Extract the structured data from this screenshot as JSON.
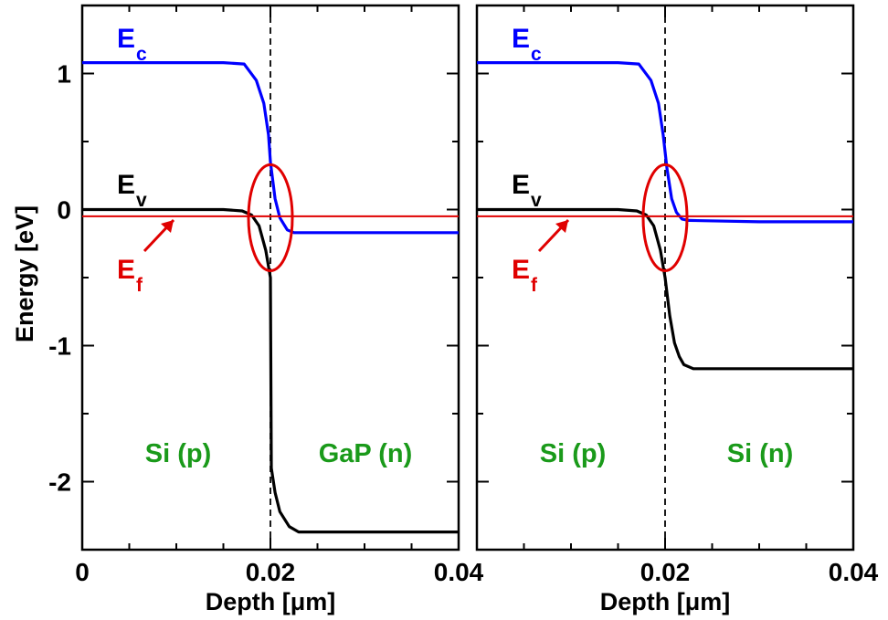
{
  "colors": {
    "ec": "#0000ff",
    "ev": "#000000",
    "ef": "#e00000",
    "region": "#1a9a1a",
    "ellipse": "#e00000",
    "frame": "#000000"
  },
  "ylabel": "Energy [eV]",
  "chart_data": [
    {
      "type": "line",
      "xlabel": "Depth [μm]",
      "ylabel": "Energy [eV]",
      "xlim": [
        0,
        0.04
      ],
      "ylim": [
        -2.5,
        1.5
      ],
      "xticks": [
        0,
        0.02,
        0.04
      ],
      "xtick_labels": [
        "0",
        "0.02",
        "0.04"
      ],
      "yticks": [
        1,
        0,
        -1,
        -2
      ],
      "ytick_labels": [
        "1",
        "0",
        "-1",
        "-2"
      ],
      "interface_x": 0.02,
      "series": [
        {
          "name": "Ec",
          "key": "ec",
          "x": [
            0,
            0.015,
            0.0172,
            0.0185,
            0.0193,
            0.0198,
            0.02,
            0.0205,
            0.021,
            0.0218,
            0.0225,
            0.03,
            0.04
          ],
          "y": [
            1.08,
            1.08,
            1.07,
            0.95,
            0.78,
            0.55,
            0.35,
            0.08,
            -0.06,
            -0.15,
            -0.17,
            -0.17,
            -0.17
          ]
        },
        {
          "name": "Ev",
          "key": "ev",
          "x": [
            0,
            0.015,
            0.017,
            0.018,
            0.0188,
            0.0195,
            0.02,
            0.0201,
            0.0205,
            0.021,
            0.022,
            0.023,
            0.03,
            0.04
          ],
          "y": [
            0,
            0,
            -0.01,
            -0.04,
            -0.12,
            -0.3,
            -0.5,
            -1.9,
            -2.08,
            -2.22,
            -2.33,
            -2.37,
            -2.37,
            -2.37
          ]
        },
        {
          "name": "Ef",
          "key": "ef",
          "x": [
            0,
            0.04
          ],
          "y": [
            -0.05,
            -0.05
          ]
        }
      ],
      "labels": {
        "ec": "E",
        "ec_sub": "c",
        "ev": "E",
        "ev_sub": "v",
        "ef": "E",
        "ef_sub": "f"
      },
      "regions": [
        "Si (p)",
        "GaP (n)"
      ]
    },
    {
      "type": "line",
      "xlabel": "Depth [μm]",
      "xlim": [
        0,
        0.04
      ],
      "ylim": [
        -2.5,
        1.5
      ],
      "xticks": [
        0,
        0.02,
        0.04
      ],
      "xtick_labels": [
        "",
        "0.02",
        "0.04"
      ],
      "yticks": [
        1,
        0,
        -1,
        -2
      ],
      "interface_x": 0.02,
      "series": [
        {
          "name": "Ec",
          "key": "ec",
          "x": [
            0,
            0.015,
            0.0172,
            0.0185,
            0.0193,
            0.0198,
            0.0202,
            0.0207,
            0.0212,
            0.0218,
            0.0225,
            0.03,
            0.04
          ],
          "y": [
            1.08,
            1.08,
            1.07,
            0.95,
            0.78,
            0.55,
            0.3,
            0.08,
            -0.02,
            -0.07,
            -0.08,
            -0.09,
            -0.09
          ]
        },
        {
          "name": "Ev",
          "key": "ev",
          "x": [
            0,
            0.015,
            0.017,
            0.018,
            0.0188,
            0.0195,
            0.02,
            0.0205,
            0.021,
            0.0215,
            0.022,
            0.023,
            0.03,
            0.04
          ],
          "y": [
            0,
            0,
            -0.01,
            -0.04,
            -0.12,
            -0.3,
            -0.5,
            -0.78,
            -0.98,
            -1.08,
            -1.14,
            -1.17,
            -1.17,
            -1.17
          ]
        },
        {
          "name": "Ef",
          "key": "ef",
          "x": [
            0,
            0.04
          ],
          "y": [
            -0.05,
            -0.05
          ]
        }
      ],
      "labels": {
        "ec": "E",
        "ec_sub": "c",
        "ev": "E",
        "ev_sub": "v",
        "ef": "E",
        "ef_sub": "f"
      },
      "regions": [
        "Si (p)",
        "Si (n)"
      ]
    }
  ]
}
